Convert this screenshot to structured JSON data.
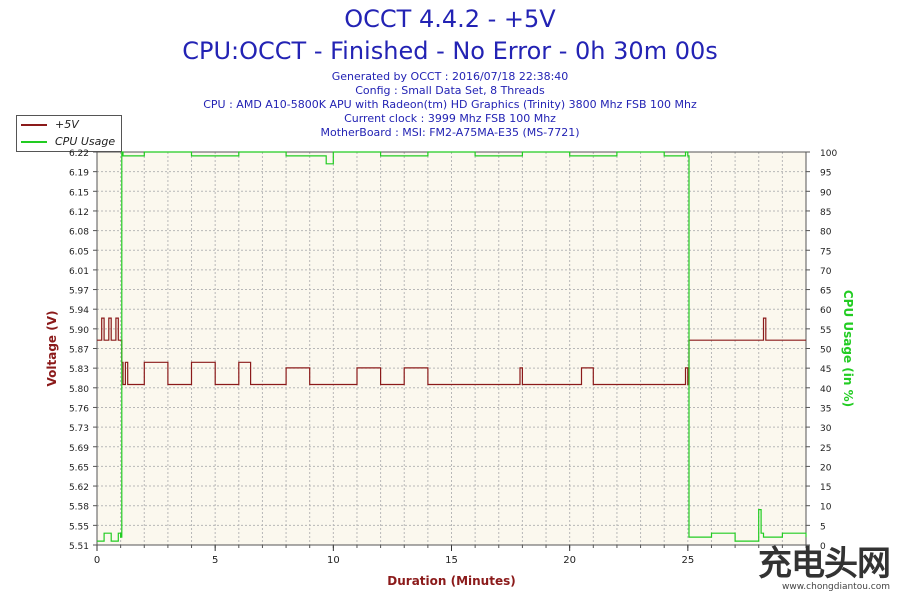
{
  "header": {
    "title": "OCCT 4.4.2 - +5V",
    "subtitle": "CPU:OCCT - Finished - No Error - 0h 30m 00s",
    "info_lines": [
      "Generated by OCCT : 2016/07/18 22:38:40",
      "Config : Small Data Set, 8 Threads",
      "CPU : AMD A10-5800K APU with Radeon(tm) HD Graphics (Trinity) 3800 Mhz FSB 100 Mhz",
      "Current clock : 3999 Mhz FSB 100 Mhz",
      "MotherBoard : MSI: FM2-A75MA-E35 (MS-7721)"
    ]
  },
  "legend": {
    "items": [
      {
        "label": "+5V",
        "color": "#8b1a1a"
      },
      {
        "label": "CPU Usage",
        "color": "#22cc22"
      }
    ]
  },
  "watermark": {
    "main": "充电头网",
    "sub": "www.chongdiantou.com"
  },
  "chart_data": {
    "type": "line",
    "xlabel": "Duration (Minutes)",
    "ylabel_left": "Voltage (V)",
    "ylabel_right": "CPU Usage (in %)",
    "xlim": [
      0,
      30
    ],
    "ylim_left": [
      5.51,
      6.22
    ],
    "ylim_right": [
      0,
      100
    ],
    "x_ticks": [
      "0",
      "5",
      "10",
      "15",
      "20",
      "25"
    ],
    "x_tick_values": [
      0,
      5,
      10,
      15,
      20,
      25
    ],
    "y_left_ticks": [
      "5.51",
      "5.55",
      "5.58",
      "5.62",
      "5.65",
      "5.69",
      "5.73",
      "5.76",
      "5.80",
      "5.83",
      "5.87",
      "5.90",
      "5.94",
      "5.97",
      "6.01",
      "6.05",
      "6.08",
      "6.12",
      "6.15",
      "6.19",
      "6.22"
    ],
    "y_right_ticks": [
      "0",
      "5",
      "10",
      "15",
      "20",
      "25",
      "30",
      "35",
      "40",
      "45",
      "50",
      "55",
      "60",
      "65",
      "70",
      "75",
      "80",
      "85",
      "90",
      "95",
      "100"
    ],
    "grid": true,
    "series": [
      {
        "name": "+5V",
        "axis": "left",
        "color": "#8b1a1a",
        "x": [
          0,
          0.2,
          0.3,
          0.5,
          0.6,
          0.8,
          0.9,
          1.0,
          1.05,
          1.1,
          1.2,
          1.3,
          2.0,
          3.0,
          4.0,
          5.0,
          6.0,
          6.5,
          7.0,
          8.0,
          9.0,
          10.0,
          11.0,
          12.0,
          13.0,
          14.0,
          15.0,
          16.0,
          17.0,
          17.9,
          18.0,
          18.1,
          19.0,
          20.0,
          20.5,
          21.0,
          22.0,
          23.0,
          24.0,
          24.5,
          24.9,
          25.0,
          25.05,
          26.0,
          27.0,
          28.0,
          28.2,
          28.3,
          29.0,
          30.0
        ],
        "values": [
          5.88,
          5.92,
          5.88,
          5.92,
          5.88,
          5.92,
          5.88,
          5.88,
          5.84,
          5.8,
          5.84,
          5.8,
          5.84,
          5.8,
          5.84,
          5.8,
          5.84,
          5.8,
          5.8,
          5.83,
          5.8,
          5.8,
          5.83,
          5.8,
          5.83,
          5.8,
          5.8,
          5.8,
          5.8,
          5.83,
          5.8,
          5.8,
          5.8,
          5.8,
          5.83,
          5.8,
          5.8,
          5.8,
          5.8,
          5.8,
          5.83,
          5.8,
          5.88,
          5.88,
          5.88,
          5.88,
          5.92,
          5.88,
          5.88,
          5.88
        ]
      },
      {
        "name": "CPU Usage",
        "axis": "right",
        "color": "#22cc22",
        "x": [
          0,
          0.3,
          0.6,
          0.9,
          1.0,
          1.05,
          1.1,
          2.0,
          4.0,
          6.0,
          8.0,
          9.7,
          10.0,
          12.0,
          14.0,
          16.0,
          18.0,
          20.0,
          22.0,
          24.0,
          24.9,
          25.0,
          25.05,
          26.0,
          27.0,
          28.0,
          28.0,
          28.1,
          28.2,
          29.0,
          30.0
        ],
        "values": [
          1,
          3,
          1,
          3,
          2,
          100,
          99,
          100,
          99,
          100,
          99,
          97,
          100,
          99,
          100,
          99,
          100,
          99,
          100,
          99,
          100,
          99,
          2,
          3,
          1,
          3,
          9,
          3,
          2,
          3,
          2
        ]
      }
    ]
  }
}
